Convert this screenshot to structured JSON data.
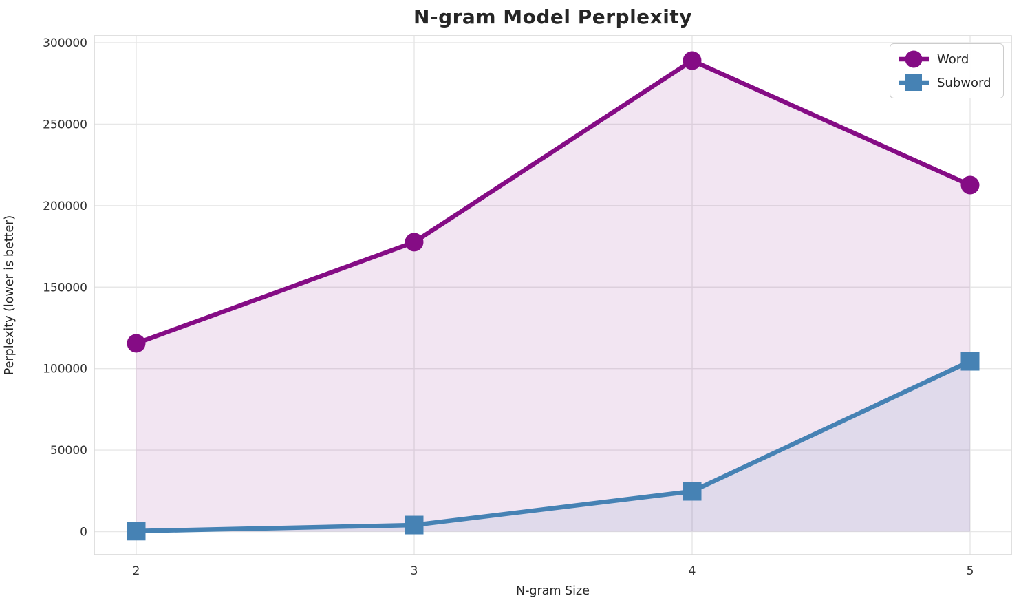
{
  "figure": {
    "title": "N-gram Model Perplexity",
    "xlabel": "N-gram Size",
    "ylabel": "Perplexity (lower is better)"
  },
  "chart_data": {
    "type": "line",
    "title": "N-gram Model Perplexity",
    "xlabel": "N-gram Size",
    "ylabel": "Perplexity (lower is better)",
    "x": [
      2,
      3,
      4,
      5
    ],
    "x_tick_labels": [
      "2",
      "3",
      "4",
      "5"
    ],
    "y_ticks": [
      0,
      50000,
      100000,
      150000,
      200000,
      250000,
      300000
    ],
    "y_tick_labels": [
      "0",
      "50000",
      "100000",
      "150000",
      "200000",
      "250000",
      "300000"
    ],
    "xlim": [
      1.85,
      5.15
    ],
    "ylim": [
      -14000,
      304000
    ],
    "grid": true,
    "legend_position": "upper right",
    "series": [
      {
        "name": "Word",
        "marker": "circle",
        "color": "#850c85",
        "fill_color": "rgba(128,0,128,0.10)",
        "values": [
          115500,
          177600,
          289000,
          212600
        ]
      },
      {
        "name": "Subword",
        "marker": "square",
        "color": "#4682b4",
        "fill_color": "rgba(70,130,180,0.10)",
        "values": [
          300,
          4000,
          24700,
          104500
        ]
      }
    ],
    "colors": {
      "grid": "#e7e7e7",
      "spine": "#d9d9d9",
      "text": "#262626",
      "tick_text": "#333333",
      "background": "#ffffff"
    }
  }
}
